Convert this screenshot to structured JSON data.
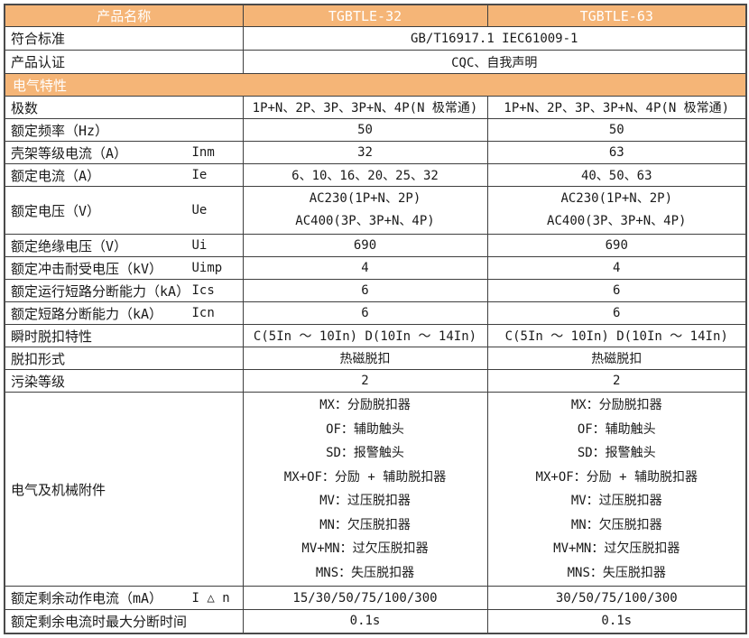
{
  "colors": {
    "accent": "#f5b577",
    "border": "#3f3f3f",
    "header_text": "#ffffff"
  },
  "header": {
    "name_label": "产品名称",
    "model_a": "TGBTLE-32",
    "model_b": "TGBTLE-63"
  },
  "standards": {
    "label": "符合标准",
    "value": "GB/T16917.1  IEC61009-1"
  },
  "certification": {
    "label": "产品认证",
    "value": "CQC、自我声明"
  },
  "section": {
    "title": "电气特性"
  },
  "rows": [
    {
      "label": "极数",
      "symbol": "",
      "a": "1P+N、2P、3P、3P+N、4P(N 极常通)",
      "b": "1P+N、2P、3P、3P+N、4P(N 极常通)"
    },
    {
      "label": "额定频率（Hz）",
      "symbol": "",
      "a": "50",
      "b": "50"
    },
    {
      "label": "壳架等级电流（A）",
      "symbol": "Inm",
      "a": "32",
      "b": "63"
    },
    {
      "label": "额定电流（A）",
      "symbol": "Ie",
      "a": "6、10、16、20、25、32",
      "b": "40、50、63"
    },
    {
      "label": "额定电压（V）",
      "symbol": "Ue",
      "a": "AC230(1P+N、2P)\nAC400(3P、3P+N、4P)",
      "b": "AC230(1P+N、2P)\nAC400(3P、3P+N、4P)"
    },
    {
      "label": "额定绝缘电压（V）",
      "symbol": "Ui",
      "a": "690",
      "b": "690"
    },
    {
      "label": "额定冲击耐受电压（kV）",
      "symbol": "Uimp",
      "a": "4",
      "b": "4"
    },
    {
      "label": "额定运行短路分断能力（kA）",
      "symbol": "Ics",
      "a": "6",
      "b": "6"
    },
    {
      "label": "额定短路分断能力（kA）",
      "symbol": "Icn",
      "a": "6",
      "b": "6"
    },
    {
      "label": "瞬时脱扣特性",
      "symbol": "",
      "a": "C(5In ～ 10In)  D(10In ～ 14In)",
      "b": "C(5In ～ 10In) D(10In ～ 14In)"
    },
    {
      "label": "脱扣形式",
      "symbol": "",
      "a": "热磁脱扣",
      "b": "热磁脱扣"
    },
    {
      "label": "污染等级",
      "symbol": "",
      "a": "2",
      "b": "2"
    },
    {
      "label": "电气及机械附件",
      "symbol": "",
      "a": "MX：分励脱扣器\nOF：辅助触头\nSD：报警触头\nMX+OF：分励 + 辅助脱扣器\nMV：过压脱扣器\nMN：欠压脱扣器\nMV+MN：过欠压脱扣器\nMNS：失压脱扣器",
      "b": "MX：分励脱扣器\nOF：辅助触头\nSD：报警触头\nMX+OF：分励 + 辅助脱扣器\nMV：过压脱扣器\nMN：欠压脱扣器\nMV+MN：过欠压脱扣器\nMNS：失压脱扣器"
    },
    {
      "label": "额定剩余动作电流（mA）",
      "symbol": "I △ n",
      "a": "15/30/50/75/100/300",
      "b": "30/50/75/100/300"
    },
    {
      "label": "额定剩余电流时最大分断时间",
      "symbol": "",
      "a": "0.1s",
      "b": "0.1s"
    }
  ]
}
